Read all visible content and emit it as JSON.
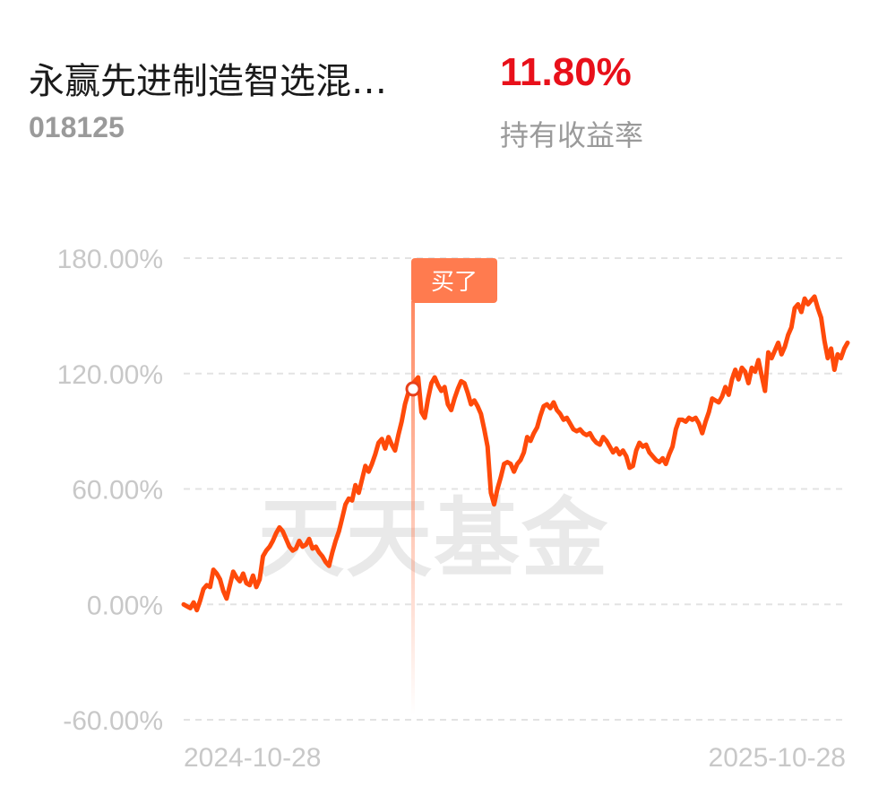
{
  "fund": {
    "name": "永赢先进制造智选混…",
    "code": "018125",
    "return_value": "11.80%",
    "return_label": "持有收益率"
  },
  "colors": {
    "line": "#ff4a0a",
    "return": "#e8101a",
    "buy_marker": "#ff7b4f",
    "grid": "#e3e3e3"
  },
  "watermark": "天天基金",
  "chart_data": {
    "type": "line",
    "title": "",
    "xlabel": "",
    "ylabel": "",
    "x_tick_labels": [
      "2024-10-28",
      "2025-10-28"
    ],
    "x_range": [
      "2024-10-28",
      "2025-10-28"
    ],
    "y_ticks": [
      180,
      120,
      60,
      0,
      -60
    ],
    "y_tick_labels": [
      "180.00%",
      "120.00%",
      "60.00%",
      "0.00%",
      "-60.00%"
    ],
    "ylim": [
      -60,
      180
    ],
    "grid": true,
    "series": [
      {
        "values": [
          0.0,
          -1.0,
          -2.0,
          1.0,
          -3.0,
          2.0,
          8.0,
          10.0,
          9.0,
          18.0,
          16.0,
          13.0,
          7.0,
          3.0,
          10.0,
          17.0,
          14.0,
          12.0,
          16.0,
          11.0,
          10.0,
          15.0,
          9.0,
          13.0,
          25.0,
          28.0,
          30.0,
          33.0,
          37.0,
          40.0,
          38.0,
          34.0,
          30.0,
          28.0,
          29.0,
          33.0,
          30.0,
          31.0,
          34.0,
          29.0,
          30.0,
          27.0,
          25.0,
          22.0,
          20.0,
          27.0,
          33.0,
          38.0,
          45.0,
          52.0,
          55.0,
          54.0,
          62.0,
          58.0,
          65.0,
          72.0,
          69.0,
          73.0,
          78.0,
          84.0,
          86.0,
          81.0,
          87.0,
          83.0,
          80.0,
          88.0,
          95.0,
          104.0,
          110.0,
          114.0,
          116.0,
          118.0,
          100.0,
          97.0,
          107.0,
          115.0,
          118.0,
          114.0,
          111.0,
          113.0,
          104.0,
          101.0,
          107.0,
          112.0,
          116.0,
          115.0,
          110.0,
          104.0,
          106.0,
          103.0,
          99.0,
          91.0,
          82.0,
          58.0,
          52.0,
          60.0,
          66.0,
          73.0,
          74.0,
          73.0,
          69.0,
          73.0,
          75.0,
          79.0,
          87.0,
          85.0,
          89.0,
          92.0,
          98.0,
          103.0,
          104.0,
          102.0,
          105.0,
          101.0,
          99.0,
          96.0,
          97.0,
          94.0,
          91.0,
          90.0,
          91.0,
          89.0,
          88.0,
          89.0,
          86.0,
          84.0,
          83.0,
          87.0,
          85.0,
          82.0,
          79.0,
          81.0,
          78.0,
          80.0,
          77.0,
          71.0,
          72.0,
          80.0,
          84.0,
          82.0,
          83.0,
          79.0,
          77.0,
          75.0,
          74.0,
          76.0,
          73.0,
          78.0,
          82.0,
          91.0,
          96.0,
          96.0,
          95.0,
          97.0,
          96.0,
          97.0,
          94.0,
          89.0,
          95.0,
          100.0,
          107.0,
          106.0,
          105.0,
          108.0,
          113.0,
          109.0,
          117.0,
          122.0,
          117.0,
          123.0,
          121.0,
          115.0,
          123.0,
          121.0,
          127.0,
          119.0,
          111.0,
          131.0,
          128.0,
          132.0,
          136.0,
          130.0,
          134.0,
          140.0,
          144.0,
          154.0,
          156.0,
          152.0,
          159.0,
          156.0,
          158.0,
          160.0,
          154.0,
          149.0,
          137.0,
          128.0,
          133.0,
          122.0,
          130.0,
          128.0,
          133.0,
          136.0
        ]
      }
    ],
    "buy_marker": {
      "label": "买了",
      "value": 112.0
    }
  }
}
